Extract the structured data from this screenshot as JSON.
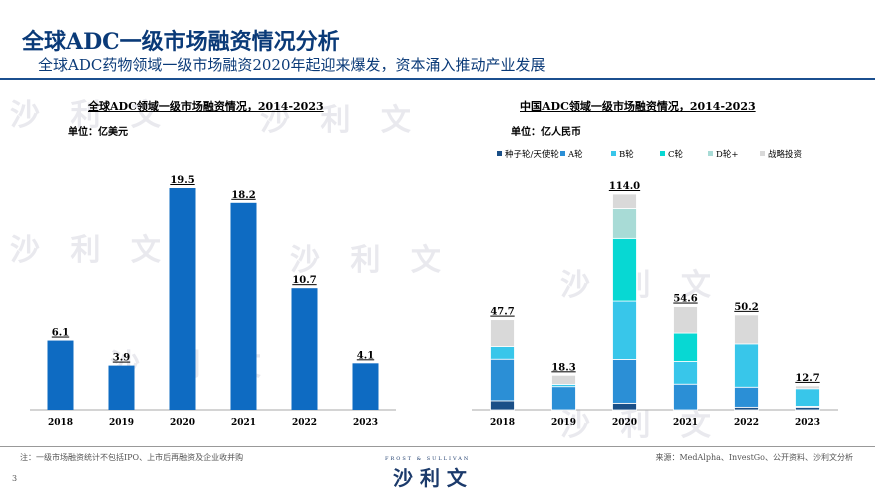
{
  "header": {
    "title": "全球ADC一级市场融资情况分析",
    "subtitle": "全球ADC药物领域一级市场融资2020年起迎来爆发，资本涌入推动产业发展"
  },
  "watermark": "沙 利 文",
  "chart_data": [
    {
      "type": "bar",
      "title": "全球ADC领域一级市场融资情况，2014-2023",
      "unit": "单位：亿美元",
      "categories": [
        "2018",
        "2019",
        "2020",
        "2021",
        "2022",
        "2023"
      ],
      "values": [
        6.1,
        3.9,
        19.5,
        18.2,
        10.7,
        4.1
      ],
      "labels": [
        "6.1",
        "3.9",
        "19.5",
        "18.2",
        "10.7",
        "4.1"
      ],
      "color": "#0e6bc2",
      "ylim": [
        0,
        22
      ]
    },
    {
      "type": "bar",
      "stacked": true,
      "title": "中国ADC领域一级市场融资情况，2014-2023",
      "unit": "单位：亿人民币",
      "categories": [
        "2018",
        "2019",
        "2020",
        "2021",
        "2022",
        "2023"
      ],
      "totals": [
        "47.7",
        "18.3",
        "114.0",
        "54.6",
        "50.2",
        "12.7"
      ],
      "legend_position": "top",
      "series": [
        {
          "name": "种子轮/天使轮",
          "color": "#1a4f87",
          "values": [
            4.8,
            0,
            3.5,
            0,
            1.4,
            1.4
          ]
        },
        {
          "name": "A轮",
          "color": "#2b8fd6",
          "values": [
            22.0,
            12.3,
            23.2,
            13.6,
            10.6,
            0.5
          ]
        },
        {
          "name": "B轮",
          "color": "#38c6ea",
          "values": [
            6.7,
            1.2,
            30.8,
            12.0,
            22.9,
            9.3
          ]
        },
        {
          "name": "C轮",
          "color": "#07d8d3",
          "values": [
            0,
            0,
            33.1,
            15.0,
            0,
            0
          ]
        },
        {
          "name": "D轮+",
          "color": "#a8dbd6",
          "values": [
            0,
            0,
            15.8,
            0,
            0,
            0
          ]
        },
        {
          "name": "战略投资",
          "color": "#d9d9d9",
          "values": [
            14.2,
            4.8,
            7.6,
            14.0,
            15.3,
            1.5
          ]
        }
      ],
      "ylim": [
        0,
        120
      ]
    }
  ],
  "footer": {
    "note": "注：一级市场融资统计不包括IPO、上市后再融资及企业收并购",
    "source": "来源：MedAlpha、InvestGo、公开资料、沙利文分析",
    "logo_top": "FROST & SULLIVAN",
    "logo_main": "沙 利 文",
    "page": "3"
  }
}
